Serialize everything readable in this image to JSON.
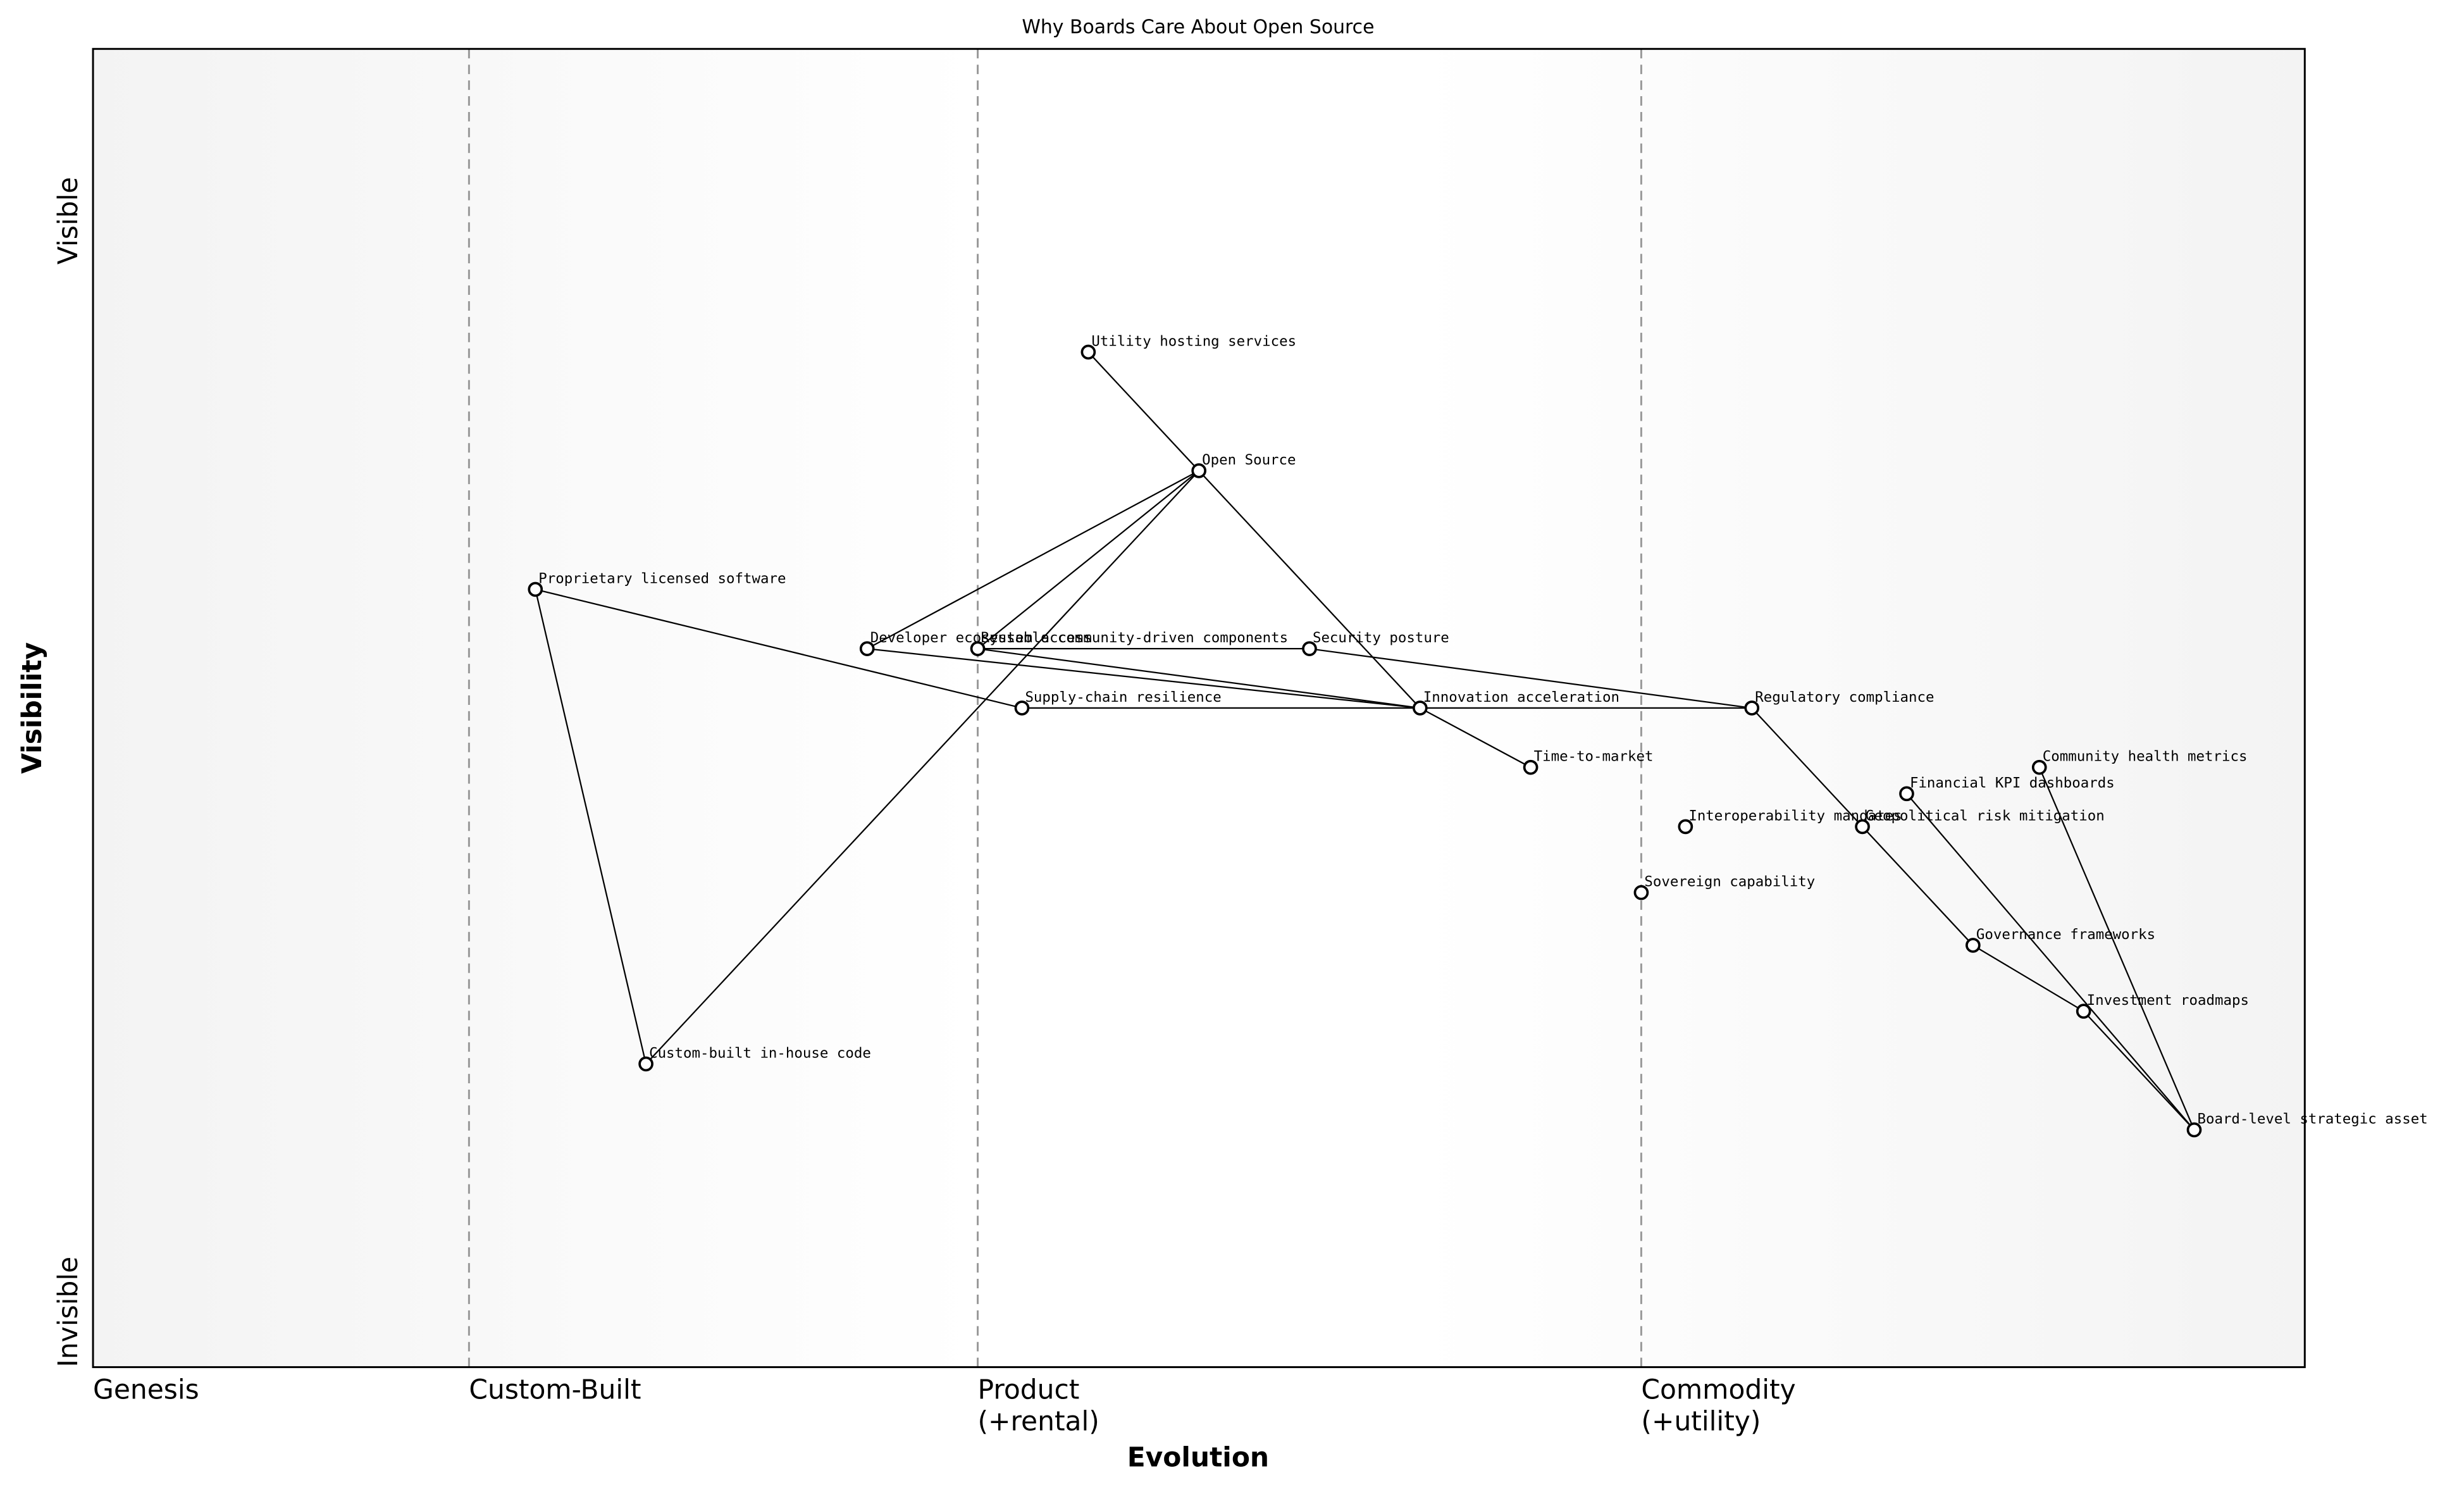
{
  "chart_data": {
    "type": "wardley",
    "title": "Why Boards Care About Open Source",
    "x_label": "Evolution",
    "y_label": "Visibility",
    "y_top_label": "Visible",
    "y_bottom_label": "Invisible",
    "xlim": [
      0,
      1
    ],
    "ylim": [
      0,
      1
    ],
    "stages": [
      {
        "lines": [
          "Genesis"
        ],
        "x": 0
      },
      {
        "lines": [
          "Custom-Built"
        ],
        "x": 0.17
      },
      {
        "lines": [
          "Product",
          "(+rental)"
        ],
        "x": 0.4
      },
      {
        "lines": [
          "Commodity",
          "(+utility)"
        ],
        "x": 0.7
      }
    ],
    "nodes": [
      {
        "label": "Utility hosting services",
        "x": 0.45,
        "y": 0.77
      },
      {
        "label": "Open Source",
        "x": 0.5,
        "y": 0.68
      },
      {
        "label": "Proprietary licensed software",
        "x": 0.2,
        "y": 0.59
      },
      {
        "label": "Developer ecosystem access",
        "x": 0.35,
        "y": 0.545
      },
      {
        "label": "Reusable community-driven components",
        "x": 0.4,
        "y": 0.545
      },
      {
        "label": "Security posture",
        "x": 0.55,
        "y": 0.545
      },
      {
        "label": "Supply-chain resilience",
        "x": 0.42,
        "y": 0.5
      },
      {
        "label": "Innovation acceleration",
        "x": 0.6,
        "y": 0.5
      },
      {
        "label": "Regulatory compliance",
        "x": 0.75,
        "y": 0.5
      },
      {
        "label": "Time-to-market",
        "x": 0.65,
        "y": 0.455
      },
      {
        "label": "Community health metrics",
        "x": 0.88,
        "y": 0.455
      },
      {
        "label": "Financial KPI dashboards",
        "x": 0.82,
        "y": 0.435
      },
      {
        "label": "Interoperability mandates",
        "x": 0.72,
        "y": 0.41
      },
      {
        "label": "Geopolitical risk mitigation",
        "x": 0.8,
        "y": 0.41
      },
      {
        "label": "Sovereign capability",
        "x": 0.7,
        "y": 0.36
      },
      {
        "label": "Governance frameworks",
        "x": 0.85,
        "y": 0.32
      },
      {
        "label": "Investment roadmaps",
        "x": 0.9,
        "y": 0.27
      },
      {
        "label": "Board-level strategic asset",
        "x": 0.95,
        "y": 0.18
      },
      {
        "label": "Custom-built in-house code",
        "x": 0.25,
        "y": 0.23
      }
    ],
    "links": [
      {
        "from": "Utility hosting services",
        "to": "Open Source"
      },
      {
        "from": "Open Source",
        "to": "Innovation acceleration"
      },
      {
        "from": "Open Source",
        "to": "Developer ecosystem access"
      },
      {
        "from": "Open Source",
        "to": "Reusable community-driven components"
      },
      {
        "from": "Open Source",
        "to": "Custom-built in-house code"
      },
      {
        "from": "Proprietary licensed software",
        "to": "Custom-built in-house code"
      },
      {
        "from": "Proprietary licensed software",
        "to": "Supply-chain resilience"
      },
      {
        "from": "Developer ecosystem access",
        "to": "Innovation acceleration"
      },
      {
        "from": "Reusable community-driven components",
        "to": "Innovation acceleration"
      },
      {
        "from": "Reusable community-driven components",
        "to": "Security posture"
      },
      {
        "from": "Security posture",
        "to": "Regulatory compliance"
      },
      {
        "from": "Supply-chain resilience",
        "to": "Innovation acceleration"
      },
      {
        "from": "Innovation acceleration",
        "to": "Regulatory compliance"
      },
      {
        "from": "Innovation acceleration",
        "to": "Time-to-market"
      },
      {
        "from": "Regulatory compliance",
        "to": "Governance frameworks"
      },
      {
        "from": "Governance frameworks",
        "to": "Investment roadmaps"
      },
      {
        "from": "Investment roadmaps",
        "to": "Board-level strategic asset"
      },
      {
        "from": "Financial KPI dashboards",
        "to": "Board-level strategic asset"
      },
      {
        "from": "Community health metrics",
        "to": "Board-level strategic asset"
      }
    ]
  }
}
